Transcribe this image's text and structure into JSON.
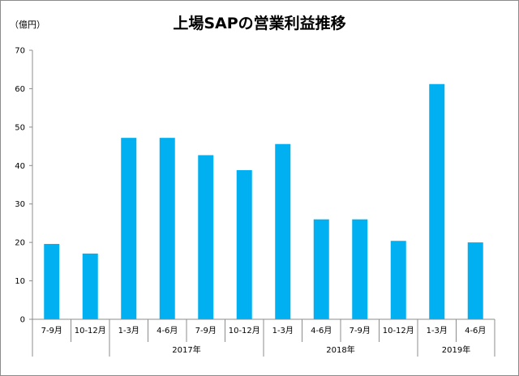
{
  "chart_data": {
    "type": "bar",
    "title": "上場SAPの営業利益推移",
    "unit_label": "（億円）",
    "categories": [
      "7-9月",
      "10-12月",
      "1-3月",
      "4-6月",
      "7-9月",
      "10-12月",
      "1-3月",
      "4-6月",
      "7-9月",
      "10-12月",
      "1-3月",
      "4-6月"
    ],
    "values": [
      19.6,
      17.1,
      47.2,
      47.2,
      42.7,
      38.8,
      45.6,
      26.0,
      26.0,
      20.4,
      61.2,
      20.0
    ],
    "year_groups": [
      {
        "label": "",
        "count": 2
      },
      {
        "label": "2017年",
        "count": 4
      },
      {
        "label": "2018年",
        "count": 4
      },
      {
        "label": "2019年",
        "count": 2
      }
    ],
    "ylim": [
      0,
      70
    ],
    "yticks": [
      0,
      10,
      20,
      30,
      40,
      50,
      60,
      70
    ],
    "bar_color": "#00b0f0",
    "grid": false,
    "legend": "none"
  }
}
